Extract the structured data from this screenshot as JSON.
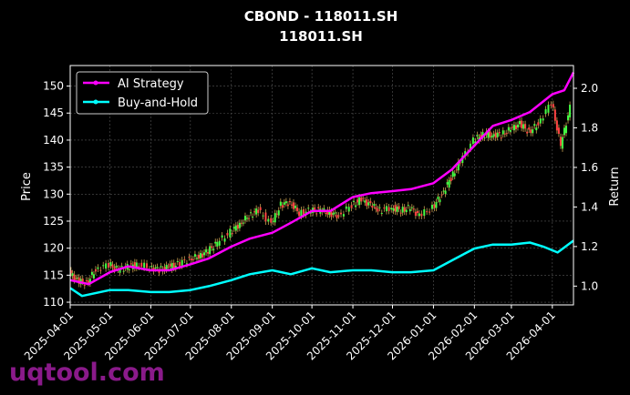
{
  "chart_data": {
    "type": "line",
    "title": "CBOND - 118011.SH",
    "subtitle": "118011.SH",
    "ylabel": "Price",
    "y2label": "Return",
    "xlabel": "",
    "x_ticks": [
      "2025-04-01",
      "2025-05-01",
      "2025-06-01",
      "2025-07-01",
      "2025-08-01",
      "2025-09-01",
      "2025-10-01",
      "2025-11-01",
      "2025-12-01",
      "2026-01-01",
      "2026-02-01",
      "2026-03-01",
      "2026-04-01"
    ],
    "x_range": [
      "2025-04-01",
      "2026-04-17"
    ],
    "y_ticks": [
      110,
      115,
      120,
      125,
      130,
      135,
      140,
      145,
      150
    ],
    "ylim": [
      109.5,
      153.8
    ],
    "y2_ticks": [
      1.0,
      1.2,
      1.4,
      1.6,
      1.8,
      2.0
    ],
    "y2lim": [
      0.905,
      2.115
    ],
    "grid": true,
    "legend_position": "top-left",
    "colors": {
      "ai": "#ff00ff",
      "bh": "#00ffff",
      "up": "#44ff44",
      "down": "#ff4444",
      "wick": "#c8a050"
    },
    "series": [
      {
        "name": "AI Strategy",
        "axis": "right",
        "color": "#ff00ff",
        "x": [
          "2025-04-01",
          "2025-04-15",
          "2025-05-01",
          "2025-05-15",
          "2025-06-01",
          "2025-06-15",
          "2025-07-01",
          "2025-07-15",
          "2025-08-01",
          "2025-08-15",
          "2025-09-01",
          "2025-09-15",
          "2025-10-01",
          "2025-10-15",
          "2025-11-01",
          "2025-11-15",
          "2025-12-01",
          "2025-12-15",
          "2026-01-01",
          "2026-01-15",
          "2026-02-01",
          "2026-02-15",
          "2026-03-01",
          "2026-03-15",
          "2026-04-01",
          "2026-04-10",
          "2026-04-17"
        ],
        "values": [
          1.03,
          1.01,
          1.07,
          1.1,
          1.08,
          1.08,
          1.11,
          1.14,
          1.2,
          1.24,
          1.27,
          1.32,
          1.38,
          1.38,
          1.45,
          1.47,
          1.48,
          1.49,
          1.52,
          1.59,
          1.71,
          1.81,
          1.84,
          1.88,
          1.97,
          1.99,
          2.08
        ]
      },
      {
        "name": "Buy-and-Hold",
        "axis": "right",
        "color": "#00ffff",
        "x": [
          "2025-04-01",
          "2025-04-10",
          "2025-05-01",
          "2025-05-15",
          "2025-06-01",
          "2025-06-15",
          "2025-07-01",
          "2025-07-15",
          "2025-08-01",
          "2025-08-15",
          "2025-09-01",
          "2025-09-15",
          "2025-10-01",
          "2025-10-15",
          "2025-11-01",
          "2025-11-15",
          "2025-12-01",
          "2025-12-15",
          "2026-01-01",
          "2026-01-15",
          "2026-02-01",
          "2026-02-15",
          "2026-03-01",
          "2026-03-15",
          "2026-03-25",
          "2026-04-05",
          "2026-04-17"
        ],
        "values": [
          0.99,
          0.95,
          0.98,
          0.98,
          0.97,
          0.97,
          0.98,
          1.0,
          1.03,
          1.06,
          1.08,
          1.06,
          1.09,
          1.07,
          1.08,
          1.08,
          1.07,
          1.07,
          1.08,
          1.13,
          1.19,
          1.21,
          1.21,
          1.22,
          1.2,
          1.17,
          1.23
        ]
      },
      {
        "name": "Price",
        "axis": "left",
        "style": "candlestick",
        "x": [
          "2025-04-01",
          "2025-04-07",
          "2025-04-14",
          "2025-04-21",
          "2025-05-01",
          "2025-05-08",
          "2025-05-15",
          "2025-05-22",
          "2025-06-01",
          "2025-06-08",
          "2025-06-15",
          "2025-06-22",
          "2025-07-01",
          "2025-07-08",
          "2025-07-15",
          "2025-07-22",
          "2025-08-01",
          "2025-08-08",
          "2025-08-15",
          "2025-08-22",
          "2025-09-01",
          "2025-09-08",
          "2025-09-15",
          "2025-09-22",
          "2025-10-01",
          "2025-10-08",
          "2025-10-15",
          "2025-10-22",
          "2025-11-01",
          "2025-11-08",
          "2025-11-15",
          "2025-11-22",
          "2025-12-01",
          "2025-12-08",
          "2025-12-15",
          "2025-12-22",
          "2026-01-01",
          "2026-01-08",
          "2026-01-15",
          "2026-01-22",
          "2026-02-01",
          "2026-02-08",
          "2026-02-15",
          "2026-02-22",
          "2026-03-01",
          "2026-03-08",
          "2026-03-15",
          "2026-03-22",
          "2026-04-01",
          "2026-04-08",
          "2026-04-15"
        ],
        "values": [
          115.5,
          114,
          113.5,
          116,
          117,
          116,
          116.5,
          117,
          116.5,
          116,
          116.5,
          117,
          118,
          118.5,
          119.5,
          121,
          123,
          124.5,
          126,
          127,
          124.5,
          128,
          128.5,
          126.5,
          127,
          127,
          126.5,
          126,
          128,
          129,
          128,
          127,
          127.5,
          127,
          127.5,
          126,
          127.5,
          130,
          133,
          136,
          140,
          141,
          141,
          141,
          142,
          143,
          141.5,
          143,
          147,
          139,
          146
        ]
      }
    ]
  },
  "watermark": "uqtool.com"
}
